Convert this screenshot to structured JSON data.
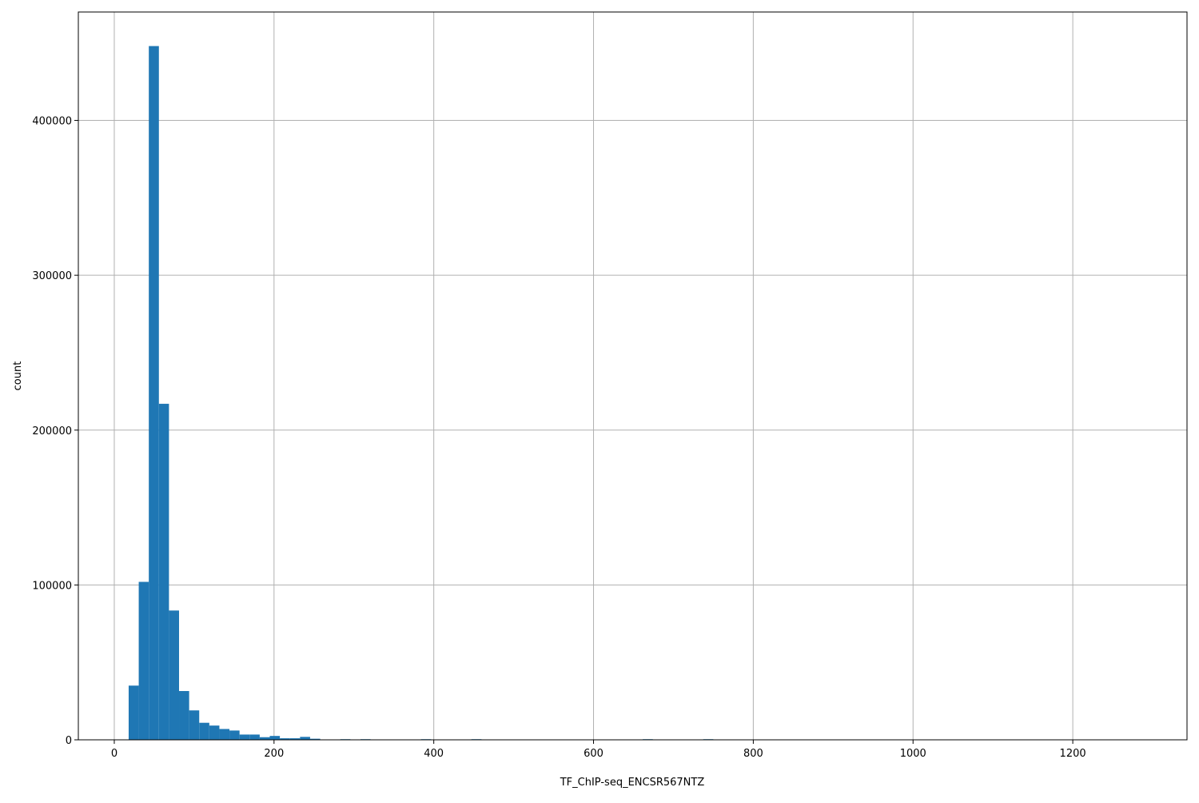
{
  "chart_data": {
    "type": "bar",
    "subtype": "histogram",
    "title": "",
    "xlabel": "TF_ChIP-seq_ENCSR567NTZ",
    "ylabel": "count",
    "bin_start": 18,
    "bin_width": 12.62,
    "values": [
      35000,
      102000,
      448000,
      217000,
      83500,
      31500,
      19000,
      11000,
      9200,
      7000,
      6000,
      3400,
      3400,
      1700,
      2500,
      1000,
      1000,
      1900,
      700,
      0,
      0,
      400,
      0,
      400,
      0,
      0,
      0,
      0,
      0,
      400,
      0,
      0,
      0,
      0,
      400,
      0,
      0,
      0,
      0,
      0,
      0,
      0,
      0,
      0,
      0,
      0,
      0,
      0,
      0,
      0,
      0,
      400,
      0,
      0,
      0,
      0,
      0,
      400,
      0,
      0,
      0,
      0,
      0,
      0,
      0,
      0,
      0,
      0,
      0,
      0,
      0,
      0,
      0,
      0,
      0,
      0,
      0,
      0,
      0,
      0,
      0,
      0,
      0,
      0,
      0,
      0,
      0,
      0,
      0,
      0,
      0,
      0,
      0,
      0,
      0,
      0,
      0,
      0,
      0,
      0
    ],
    "xlim": [
      -45,
      1343
    ],
    "ylim": [
      0,
      470000
    ],
    "xticks": [
      "0",
      "200",
      "400",
      "600",
      "800",
      "1000",
      "1200"
    ],
    "yticks": [
      "0",
      "100000",
      "200000",
      "300000",
      "400000"
    ],
    "grid": true,
    "bar_color": "#1f77b4",
    "grid_color": "#b0b0b0"
  }
}
